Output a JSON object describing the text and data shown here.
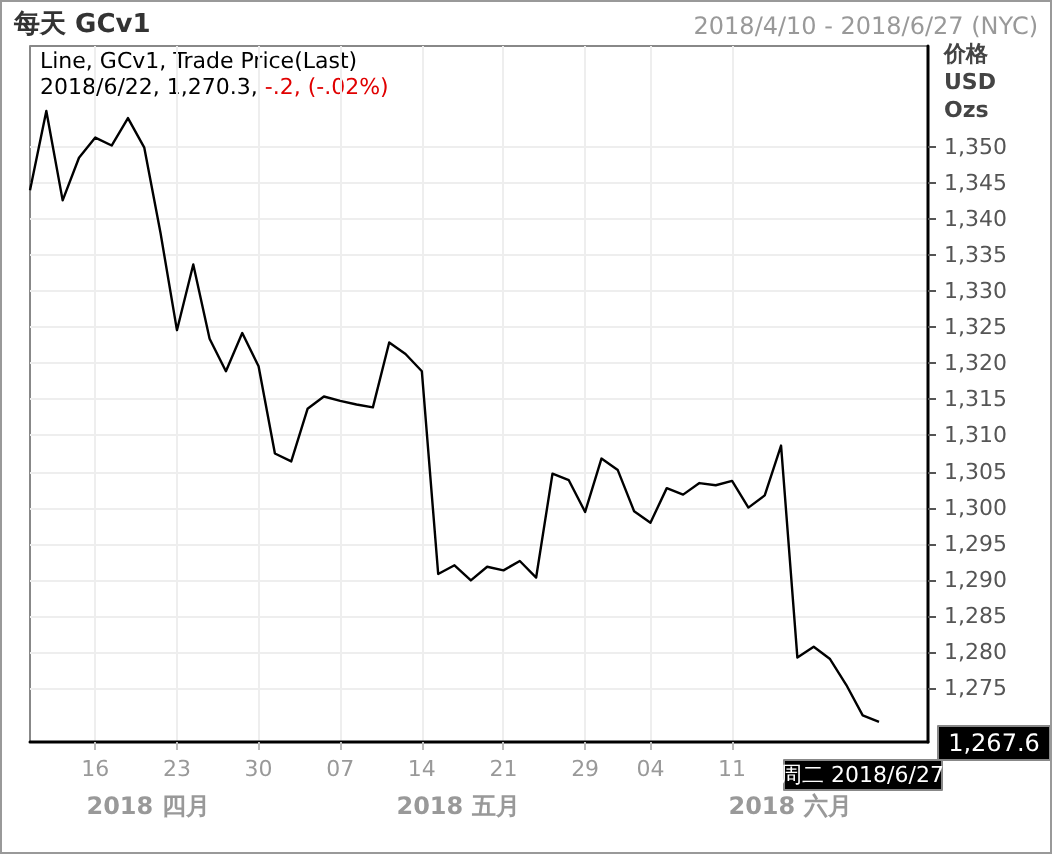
{
  "chart_data": {
    "type": "line",
    "title": "每天 GCv1",
    "subtitle": "2018/4/10 - 2018/6/27 (NYC)",
    "ylabel": "价格\nUSD\nOzs",
    "annotations": [
      "Line, GCv1, Trade Price(Last)",
      "2018/6/22, 1,270.3, -.2, (-.02%)",
      "1,267.6",
      "周二 2018/6/27",
      "2018 四月",
      "2018 五月",
      "2018 六月"
    ],
    "categories": [
      null,
      null,
      null,
      null,
      "16",
      null,
      null,
      null,
      null,
      "23",
      null,
      null,
      null,
      null,
      "30",
      null,
      null,
      null,
      null,
      "07",
      null,
      null,
      null,
      null,
      "14",
      null,
      null,
      null,
      null,
      "21",
      null,
      null,
      null,
      null,
      "29",
      null,
      null,
      null,
      "04",
      null,
      null,
      null,
      null,
      "11",
      null,
      null,
      null,
      null,
      null,
      null,
      null,
      null,
      null,
      null,
      null,
      null
    ],
    "series": [
      {
        "color": "#000000",
        "values": [
          1344,
          1355,
          1342.6,
          1348.5,
          1351.3,
          1350.2,
          1354.0,
          1349.9,
          1338.0,
          1324.6,
          1333.7,
          1323.4,
          1318.9,
          1324.2,
          1319.6,
          1307.5,
          1306.4,
          1313.7,
          1315.4,
          1314.8,
          1314.3,
          1313.9,
          1322.9,
          1321.3,
          1318.9,
          1290.8,
          1292.0,
          1289.9,
          1291.8,
          1291.3,
          1292.6,
          1290.3,
          1304.7,
          1303.8,
          1299.4,
          1306.8,
          1305.2,
          1299.5,
          1297.9,
          1302.7,
          1301.8,
          1303.4,
          1303.1,
          1303.7,
          1300.0,
          1301.7,
          1308.6,
          1279.2,
          1280.7,
          1279.0,
          1275.4,
          1271.2,
          1270.3,
          null,
          null,
          null
        ]
      }
    ],
    "ylim": [
      1267.5,
      1364
    ],
    "yticks": [
      {
        "value": 1275,
        "label": "1,275"
      },
      {
        "value": 1280,
        "label": "1,280"
      },
      {
        "value": 1285,
        "label": "1,285"
      },
      {
        "value": 1290,
        "label": "1,290"
      },
      {
        "value": 1295,
        "label": "1,295"
      },
      {
        "value": 1300,
        "label": "1,300"
      },
      {
        "value": 1305,
        "label": "1,305"
      },
      {
        "value": 1310,
        "label": "1,310"
      },
      {
        "value": 1315,
        "label": "1,315"
      },
      {
        "value": 1320,
        "label": "1,320"
      },
      {
        "value": 1325,
        "label": "1,325"
      },
      {
        "value": 1330,
        "label": "1,330"
      },
      {
        "value": 1335,
        "label": "1,335"
      },
      {
        "value": 1340,
        "label": "1,340"
      },
      {
        "value": 1345,
        "label": "1,345"
      },
      {
        "value": 1350,
        "label": "1,350"
      }
    ],
    "grid": true,
    "marker": "none",
    "line_style": "solid"
  }
}
